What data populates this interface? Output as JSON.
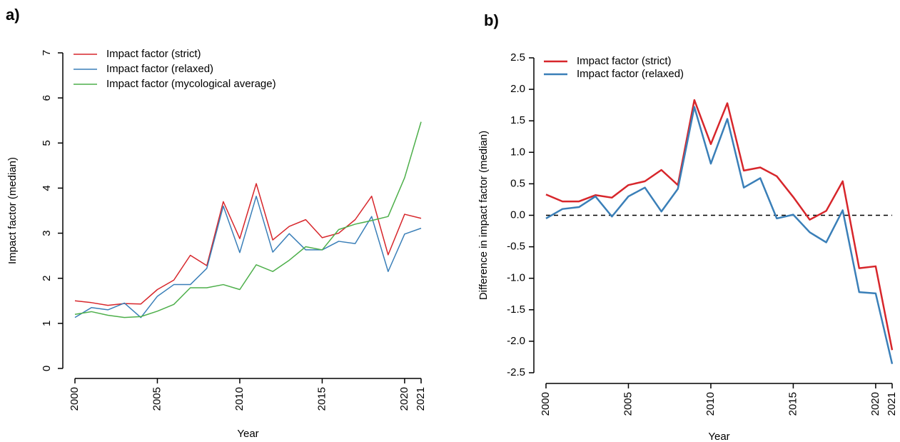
{
  "chart_data": [
    {
      "type": "line",
      "panel": "a)",
      "xlabel": "Year",
      "ylabel": "Impact factor (median)",
      "x": [
        2000,
        2001,
        2002,
        2003,
        2004,
        2005,
        2006,
        2007,
        2008,
        2009,
        2010,
        2011,
        2012,
        2013,
        2014,
        2015,
        2016,
        2017,
        2018,
        2019,
        2020,
        2021
      ],
      "series": [
        {
          "name": "Impact factor (strict)",
          "color": "#d7262b",
          "values": [
            1.5,
            1.46,
            1.4,
            1.44,
            1.43,
            1.75,
            1.96,
            2.51,
            2.28,
            3.7,
            2.88,
            4.1,
            2.85,
            3.15,
            3.3,
            2.9,
            3.0,
            3.3,
            3.82,
            2.52,
            3.42,
            3.33
          ]
        },
        {
          "name": "Impact factor (relaxed)",
          "color": "#3a7fb8",
          "values": [
            1.13,
            1.35,
            1.3,
            1.45,
            1.13,
            1.6,
            1.86,
            1.86,
            2.22,
            3.6,
            2.57,
            3.82,
            2.58,
            2.99,
            2.63,
            2.63,
            2.82,
            2.77,
            3.37,
            2.15,
            2.98,
            3.11
          ]
        },
        {
          "name": "Impact factor (mycological average)",
          "color": "#4daf4a",
          "values": [
            1.2,
            1.26,
            1.18,
            1.13,
            1.15,
            1.27,
            1.42,
            1.79,
            1.79,
            1.86,
            1.75,
            2.3,
            2.15,
            2.4,
            2.7,
            2.63,
            3.08,
            3.2,
            3.28,
            3.37,
            4.23,
            5.47
          ]
        }
      ],
      "xlim": [
        2000,
        2021
      ],
      "xticks": [
        2000,
        2005,
        2010,
        2015,
        2020,
        2021
      ],
      "ylim": [
        0,
        7
      ],
      "yticks": [
        0,
        1,
        2,
        3,
        4,
        5,
        6,
        7
      ],
      "legend": "upper left"
    },
    {
      "type": "line",
      "panel": "b)",
      "xlabel": "Year",
      "ylabel": "Difference in impact factor (median)",
      "x": [
        2000,
        2001,
        2002,
        2003,
        2004,
        2005,
        2006,
        2007,
        2008,
        2009,
        2010,
        2011,
        2012,
        2013,
        2014,
        2015,
        2016,
        2017,
        2018,
        2019,
        2020,
        2021
      ],
      "series": [
        {
          "name": "Impact factor (strict)",
          "color": "#d7262b",
          "values": [
            0.33,
            0.22,
            0.22,
            0.32,
            0.28,
            0.48,
            0.54,
            0.72,
            0.48,
            1.83,
            1.13,
            1.78,
            0.71,
            0.76,
            0.62,
            0.29,
            -0.07,
            0.07,
            0.54,
            -0.84,
            -0.81,
            -2.14
          ]
        },
        {
          "name": "Impact factor (relaxed)",
          "color": "#3a7fb8",
          "values": [
            -0.05,
            0.1,
            0.13,
            0.3,
            -0.02,
            0.3,
            0.44,
            0.06,
            0.42,
            1.72,
            0.82,
            1.53,
            0.44,
            0.59,
            -0.05,
            0.01,
            -0.27,
            -0.43,
            0.08,
            -1.22,
            -1.24,
            -2.36
          ]
        }
      ],
      "xlim": [
        2000,
        2021
      ],
      "xticks": [
        2000,
        2005,
        2010,
        2015,
        2020,
        2021
      ],
      "ylim": [
        -2.5,
        2.5
      ],
      "yticks": [
        {
          "value": -2.5,
          "label": "-2.5"
        },
        {
          "value": -2,
          "label": "-2.0"
        },
        {
          "value": -1.5,
          "label": "-1.5"
        },
        {
          "value": -1,
          "label": "-1.0"
        },
        {
          "value": -0.5,
          "label": "-0.5"
        },
        {
          "value": 0,
          "label": "0.0"
        },
        {
          "value": 0.5,
          "label": "0.5"
        },
        {
          "value": 1,
          "label": "1.0"
        },
        {
          "value": 1.5,
          "label": "1.5"
        },
        {
          "value": 2,
          "label": "2.0"
        },
        {
          "value": 2.5,
          "label": "2.5"
        }
      ],
      "reference_line": 0,
      "legend": "upper left"
    }
  ]
}
